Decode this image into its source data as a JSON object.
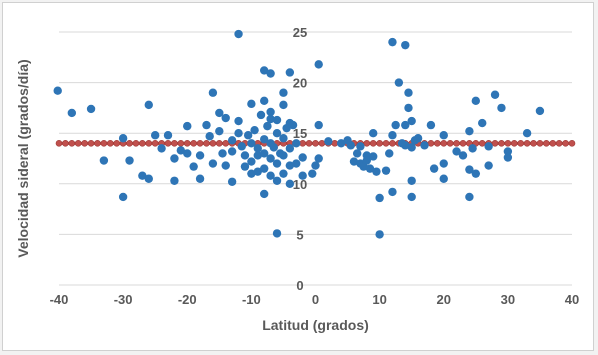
{
  "chart_data": {
    "type": "scatter",
    "xlabel": "Latitud (grados)",
    "ylabel": "Velocidad sideral (grados/día)",
    "xlim": [
      -40,
      40
    ],
    "ylim": [
      0,
      25
    ],
    "x_ticks": [
      -40,
      -30,
      -20,
      -10,
      0,
      10,
      20,
      30,
      40
    ],
    "y_ticks": [
      0,
      5,
      10,
      15,
      20,
      25
    ],
    "grid": "horizontal",
    "legend": "none",
    "colors": {
      "points": "#2e75b6",
      "reference": "#c0504d",
      "grid": "#d9d9d9"
    },
    "series": [
      {
        "type": "scatter",
        "points": [
          [
            -40.2,
            19.2
          ],
          [
            -38,
            17.0
          ],
          [
            -35,
            17.4
          ],
          [
            -33,
            12.3
          ],
          [
            -30,
            14.5
          ],
          [
            -30,
            8.7
          ],
          [
            -29,
            12.3
          ],
          [
            -27,
            10.8
          ],
          [
            -26,
            10.5
          ],
          [
            -26,
            17.8
          ],
          [
            -25,
            14.8
          ],
          [
            -24,
            13.5
          ],
          [
            -23,
            14.8
          ],
          [
            -22,
            12.5
          ],
          [
            -22,
            10.3
          ],
          [
            -21,
            13.3
          ],
          [
            -20,
            15.7
          ],
          [
            -20,
            13.0
          ],
          [
            -19,
            11.7
          ],
          [
            -18,
            12.8
          ],
          [
            -18,
            10.5
          ],
          [
            -17,
            15.8
          ],
          [
            -16.5,
            14.7
          ],
          [
            -16,
            12.0
          ],
          [
            -16,
            19.0
          ],
          [
            -15,
            17.0
          ],
          [
            -15,
            15.2
          ],
          [
            -14.5,
            13.0
          ],
          [
            -14,
            16.5
          ],
          [
            -14,
            11.8
          ],
          [
            -13,
            14.3
          ],
          [
            -13,
            13.2
          ],
          [
            -13,
            10.2
          ],
          [
            -12,
            24.8
          ],
          [
            -12,
            16.2
          ],
          [
            -12,
            15.0
          ],
          [
            -11.5,
            13.7
          ],
          [
            -11,
            12.8
          ],
          [
            -11,
            11.7
          ],
          [
            -10.5,
            14.8
          ],
          [
            -10,
            17.9
          ],
          [
            -10,
            14.0
          ],
          [
            -10,
            12.2
          ],
          [
            -10,
            11.0
          ],
          [
            -9.5,
            15.3
          ],
          [
            -9,
            13.5
          ],
          [
            -9,
            12.8
          ],
          [
            -9,
            11.2
          ],
          [
            -8.5,
            16.8
          ],
          [
            -8,
            21.2
          ],
          [
            -8,
            18.2
          ],
          [
            -8,
            14.4
          ],
          [
            -8,
            13.0
          ],
          [
            -8,
            11.5
          ],
          [
            -8,
            9.0
          ],
          [
            -7.5,
            15.7
          ],
          [
            -7,
            20.9
          ],
          [
            -7,
            17.1
          ],
          [
            -7,
            16.4
          ],
          [
            -7,
            14.0
          ],
          [
            -7,
            12.5
          ],
          [
            -7,
            10.8
          ],
          [
            -6.5,
            13.6
          ],
          [
            -6,
            16.3
          ],
          [
            -6,
            15.0
          ],
          [
            -6,
            12.0
          ],
          [
            -6,
            10.3
          ],
          [
            -6,
            5.1
          ],
          [
            -5.5,
            13.0
          ],
          [
            -5,
            19.0
          ],
          [
            -5,
            17.8
          ],
          [
            -5,
            14.5
          ],
          [
            -5,
            12.8
          ],
          [
            -5,
            11.0
          ],
          [
            -4.5,
            15.5
          ],
          [
            -4,
            21.0
          ],
          [
            -4,
            16.0
          ],
          [
            -4,
            13.5
          ],
          [
            -4,
            11.8
          ],
          [
            -4,
            10.0
          ],
          [
            -3.5,
            15.8
          ],
          [
            -3,
            14.0
          ],
          [
            -3,
            12.0
          ],
          [
            -2,
            10.8
          ],
          [
            -2,
            12.6
          ],
          [
            -0.5,
            11.0
          ],
          [
            0,
            11.8
          ],
          [
            0.5,
            12.5
          ],
          [
            0.5,
            21.8
          ],
          [
            0.5,
            15.8
          ],
          [
            2,
            14.2
          ],
          [
            4,
            14.0
          ],
          [
            5,
            14.3
          ],
          [
            5.5,
            13.8
          ],
          [
            6,
            12.2
          ],
          [
            6.5,
            13.0
          ],
          [
            7,
            13.7
          ],
          [
            7,
            12.0
          ],
          [
            7.5,
            11.7
          ],
          [
            8,
            12.8
          ],
          [
            8,
            12.3
          ],
          [
            8.5,
            11.5
          ],
          [
            9,
            12.7
          ],
          [
            9,
            15.0
          ],
          [
            9.5,
            11.2
          ],
          [
            10,
            8.6
          ],
          [
            10,
            5.0
          ],
          [
            11,
            11.3
          ],
          [
            11.5,
            13.0
          ],
          [
            12,
            24.0
          ],
          [
            12,
            14.8
          ],
          [
            12,
            9.2
          ],
          [
            12.5,
            15.8
          ],
          [
            13,
            20.0
          ],
          [
            13.5,
            14.0
          ],
          [
            14,
            23.7
          ],
          [
            14,
            13.8
          ],
          [
            14,
            15.8
          ],
          [
            14.5,
            17.5
          ],
          [
            14.5,
            19.0
          ],
          [
            15,
            16.2
          ],
          [
            15,
            13.6
          ],
          [
            15,
            10.3
          ],
          [
            15,
            8.7
          ],
          [
            15.5,
            14.3
          ],
          [
            16,
            14.5
          ],
          [
            17,
            13.8
          ],
          [
            18,
            15.8
          ],
          [
            18.5,
            11.5
          ],
          [
            20,
            14.8
          ],
          [
            20,
            12.0
          ],
          [
            20,
            10.5
          ],
          [
            22,
            13.2
          ],
          [
            23,
            12.8
          ],
          [
            24,
            15.2
          ],
          [
            24,
            8.7
          ],
          [
            24,
            11.4
          ],
          [
            24.5,
            13.5
          ],
          [
            25,
            18.2
          ],
          [
            25,
            11.0
          ],
          [
            26,
            16.0
          ],
          [
            27,
            13.7
          ],
          [
            27,
            11.8
          ],
          [
            28,
            18.8
          ],
          [
            29,
            17.5
          ],
          [
            30,
            13.2
          ],
          [
            30,
            12.6
          ],
          [
            33,
            15.0
          ],
          [
            35,
            17.2
          ]
        ]
      },
      {
        "type": "line",
        "x": [
          -40,
          40
        ],
        "y": [
          14.0,
          14.0
        ]
      }
    ]
  }
}
